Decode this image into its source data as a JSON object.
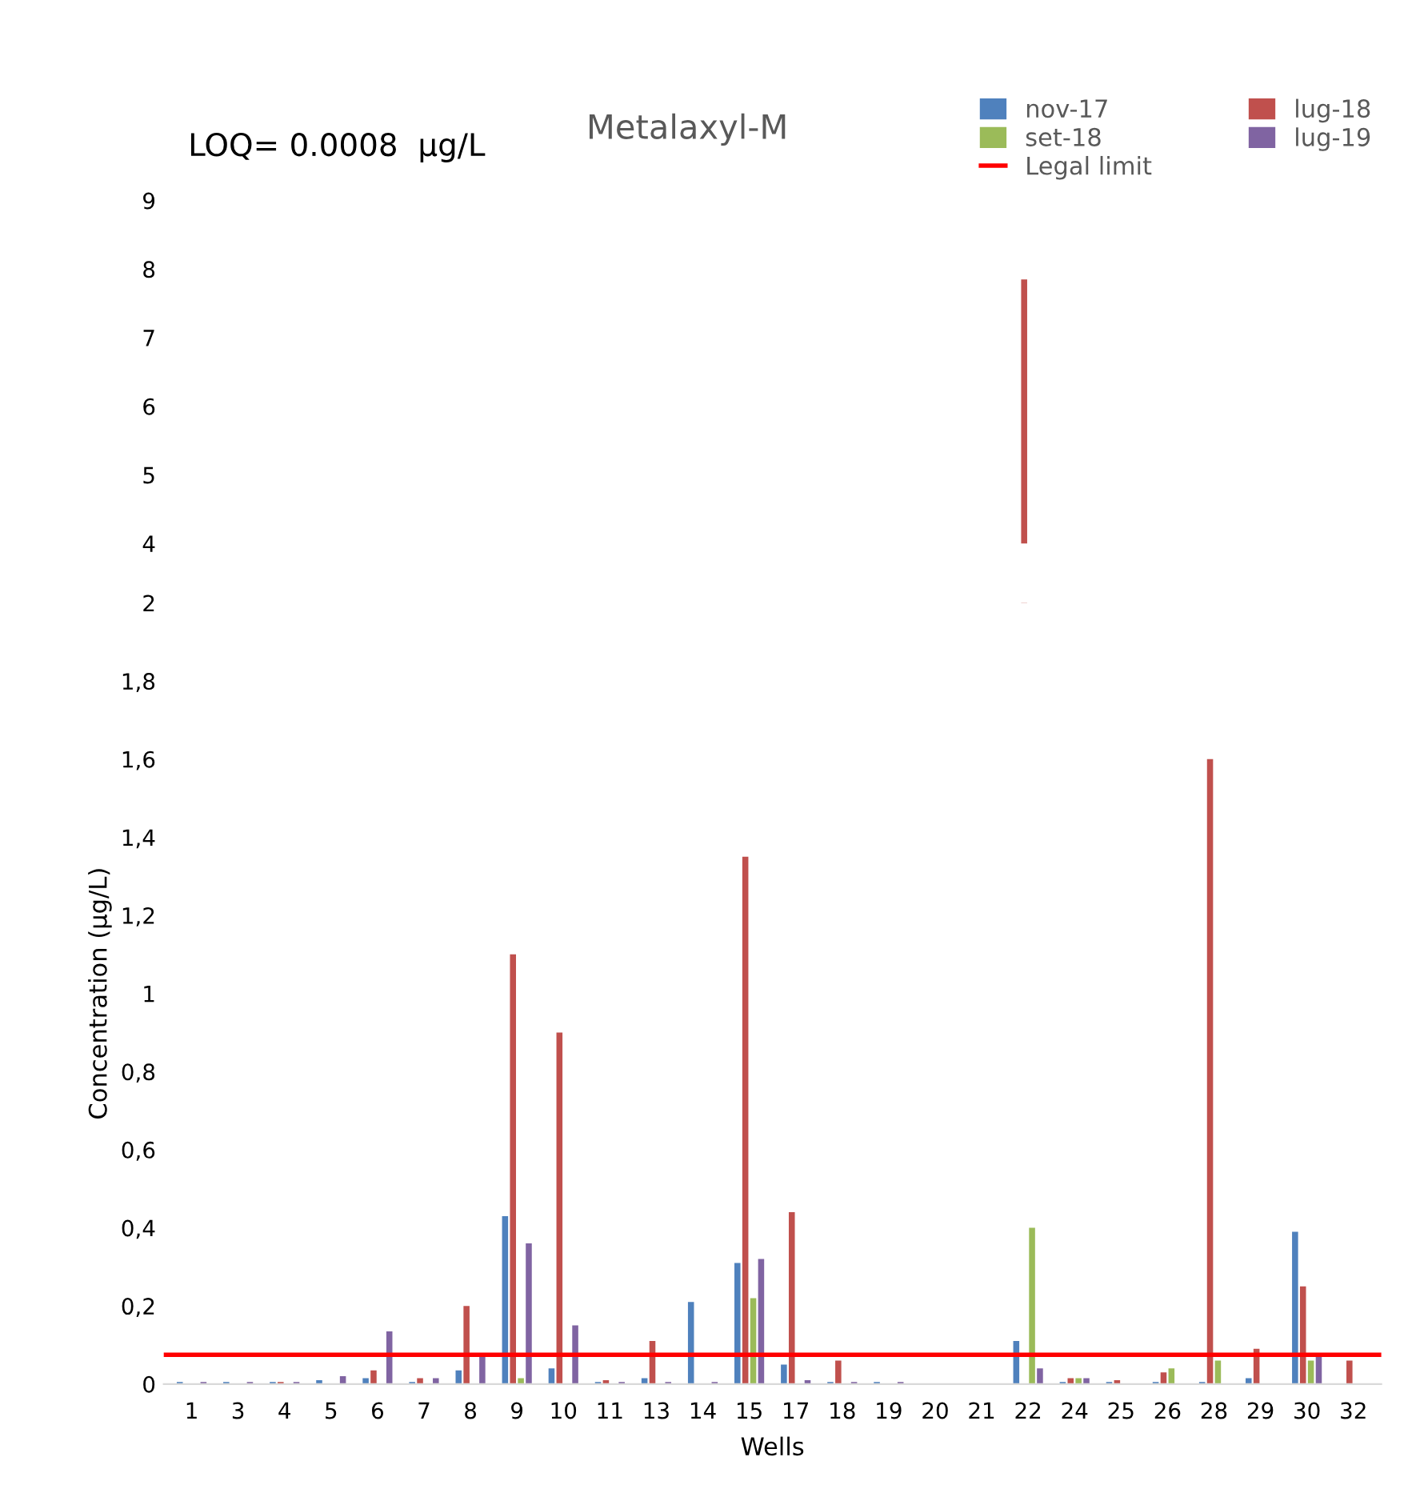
{
  "chart_data": [
    {
      "type": "bar",
      "title": "Metalaxyl-M",
      "annotations": [
        "LOQ= 0.0008  µg/L"
      ],
      "categories": [
        "1",
        "3",
        "4",
        "5",
        "6",
        "7",
        "8",
        "9",
        "10",
        "11",
        "13",
        "14",
        "15",
        "17",
        "18",
        "19",
        "20",
        "21",
        "22",
        "24",
        "25",
        "26",
        "28",
        "29",
        "30",
        "32"
      ],
      "series": [
        {
          "name": "nov-17",
          "color": "#4f81bd",
          "values": [
            null,
            null,
            null,
            null,
            null,
            null,
            null,
            null,
            null,
            null,
            null,
            null,
            null,
            null,
            null,
            null,
            null,
            null,
            null,
            null,
            null,
            null,
            null,
            null,
            null,
            null
          ]
        },
        {
          "name": "lug-18",
          "color": "#c0504d",
          "values": [
            null,
            null,
            null,
            null,
            null,
            null,
            null,
            null,
            null,
            null,
            null,
            null,
            null,
            null,
            null,
            null,
            null,
            null,
            7.85,
            null,
            null,
            null,
            null,
            null,
            null,
            null
          ]
        },
        {
          "name": "set-18",
          "color": "#9bbb59",
          "values": [
            null,
            null,
            null,
            null,
            null,
            null,
            null,
            null,
            null,
            null,
            null,
            null,
            null,
            null,
            null,
            null,
            null,
            null,
            null,
            null,
            null,
            null,
            null,
            null,
            null,
            null
          ]
        },
        {
          "name": "lug-19",
          "color": "#8064a2",
          "values": [
            null,
            null,
            null,
            null,
            null,
            null,
            null,
            null,
            null,
            null,
            null,
            null,
            null,
            null,
            null,
            null,
            null,
            null,
            null,
            null,
            null,
            null,
            null,
            null,
            null,
            null
          ]
        }
      ],
      "ylim": [
        4,
        9
      ],
      "yticks": [
        4,
        5,
        6,
        7,
        8,
        9
      ],
      "tick_labels": "y",
      "legend": "top right",
      "grid": false
    },
    {
      "type": "bar",
      "xlabel": "Wells",
      "ylabel": "Concentration (µg/L)",
      "categories": [
        "1",
        "3",
        "4",
        "5",
        "6",
        "7",
        "8",
        "9",
        "10",
        "11",
        "13",
        "14",
        "15",
        "17",
        "18",
        "19",
        "20",
        "21",
        "22",
        "24",
        "25",
        "26",
        "28",
        "29",
        "30",
        "32"
      ],
      "series": [
        {
          "color": "#4f81bd",
          "values": [
            0.005,
            0.005,
            0.005,
            0.01,
            0.015,
            0.005,
            0.035,
            0.43,
            0.04,
            0.005,
            0.015,
            0.21,
            0.31,
            0.05,
            0.005,
            0.005,
            null,
            null,
            0.11,
            0.005,
            0.005,
            0.005,
            0.005,
            0.015,
            0.39,
            null
          ]
        },
        {
          "color": "#c0504d",
          "values": [
            null,
            null,
            0.005,
            null,
            0.035,
            0.015,
            0.2,
            1.1,
            0.9,
            0.01,
            0.11,
            null,
            1.35,
            0.44,
            0.06,
            null,
            null,
            null,
            null,
            0.015,
            0.01,
            0.03,
            1.6,
            0.09,
            0.25,
            0.06
          ]
        },
        {
          "color": "#9bbb59",
          "values": [
            null,
            null,
            null,
            null,
            null,
            null,
            null,
            0.015,
            null,
            null,
            null,
            null,
            0.22,
            null,
            null,
            null,
            null,
            null,
            0.4,
            0.015,
            null,
            0.04,
            0.06,
            null,
            0.06,
            null
          ]
        },
        {
          "color": "#8064a2",
          "values": [
            0.005,
            0.005,
            0.005,
            0.02,
            0.135,
            0.015,
            0.07,
            0.36,
            0.15,
            0.005,
            0.005,
            0.005,
            0.32,
            0.01,
            0.005,
            0.005,
            null,
            null,
            0.04,
            0.015,
            null,
            null,
            null,
            null,
            0.075,
            null
          ]
        }
      ],
      "ylim": [
        0,
        2
      ],
      "yticks": [
        0,
        {
          "value": 0.2,
          "label": "0,2"
        },
        {
          "value": 0.4,
          "label": "0,4"
        },
        {
          "value": 0.6,
          "label": "0,6"
        },
        {
          "value": 0.8,
          "label": "0,8"
        },
        1,
        {
          "value": 1.2,
          "label": "1,2"
        },
        {
          "value": 1.4,
          "label": "1,4"
        },
        {
          "value": 1.6,
          "label": "1,6"
        },
        {
          "value": 1.8,
          "label": "1,8"
        },
        2
      ],
      "ref_lines": [
        {
          "axis": "y",
          "value": 0.075,
          "label": "Legal limit",
          "color": "#ff0000"
        }
      ],
      "grid": false
    }
  ]
}
